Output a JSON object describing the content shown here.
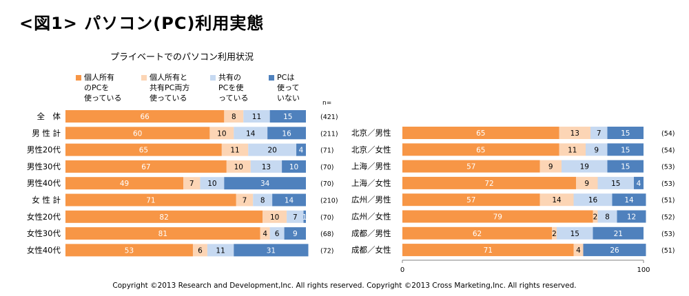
{
  "page_title": "<図1> パソコン(PC)利用実態",
  "copyright": "Copyright ©2013 Research and Development,Inc. All rights reserved. Copyright ©2013 Cross Marketing,Inc. All rights reserved.",
  "colors": {
    "c1": "#f79646",
    "c2": "#fcd5b5",
    "c3": "#c6d9f1",
    "c4": "#4f81bd"
  },
  "chart_data": [
    {
      "type": "bar",
      "stacked": true,
      "orientation": "horizontal",
      "title": "プライベートでのパソコン利用状況",
      "legend": [
        "個人所有\nのPCを\n使っている",
        "個人所有と\n共有PC両方\n使っている",
        "共有の\nPCを使\nっている",
        "PCは\n使って\nいない"
      ],
      "n_header": "n=",
      "categories": [
        "全　体",
        "男 性 計",
        "男性20代",
        "男性30代",
        "男性40代",
        "女 性 計",
        "女性20代",
        "女性30代",
        "女性40代"
      ],
      "n": [
        "(421)",
        "(211)",
        "(71)",
        "(70)",
        "(70)",
        "(210)",
        "(70)",
        "(68)",
        "(72)"
      ],
      "series": [
        {
          "name": "個人所有\nのPCを\n使っている",
          "values": [
            66,
            60,
            65,
            67,
            49,
            71,
            82,
            81,
            53
          ]
        },
        {
          "name": "個人所有と\n共有PC両方\n使っている",
          "values": [
            8,
            10,
            11,
            10,
            7,
            7,
            10,
            4,
            6
          ]
        },
        {
          "name": "共有の\nPCを使\nっている",
          "values": [
            11,
            14,
            20,
            13,
            10,
            8,
            7,
            6,
            11
          ]
        },
        {
          "name": "PCは\n使って\nいない",
          "values": [
            15,
            16,
            4,
            10,
            34,
            14,
            1,
            9,
            31
          ]
        }
      ]
    },
    {
      "type": "bar",
      "stacked": true,
      "orientation": "horizontal",
      "categories": [
        "北京／男性",
        "北京／女性",
        "上海／男性",
        "上海／女性",
        "広州／男性",
        "広州／女性",
        "成都／男性",
        "成都／女性"
      ],
      "n": [
        "(54)",
        "(54)",
        "(53)",
        "(53)",
        "(51)",
        "(52)",
        "(53)",
        "(51)"
      ],
      "xlim": [
        0,
        100
      ],
      "xticks": [
        "0",
        "100"
      ],
      "series": [
        {
          "values": [
            65,
            65,
            57,
            72,
            57,
            79,
            62,
            71
          ]
        },
        {
          "values": [
            13,
            11,
            9,
            9,
            14,
            2,
            2,
            4
          ]
        },
        {
          "values": [
            7,
            9,
            19,
            15,
            16,
            8,
            15,
            0
          ]
        },
        {
          "values": [
            15,
            15,
            15,
            4,
            14,
            12,
            21,
            26
          ]
        }
      ]
    }
  ]
}
